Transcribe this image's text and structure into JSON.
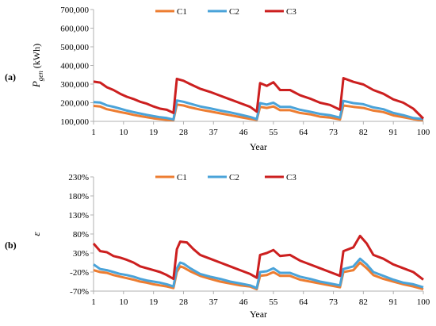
{
  "chart_data": [
    {
      "type": "line",
      "panel_label": "(a)",
      "ylabel": "P",
      "ylabel_subscript": "gen",
      "ylabel_unit": " (kWh)",
      "xlabel": "Year",
      "xlim": [
        1,
        100
      ],
      "ylim": [
        100000,
        700000
      ],
      "y_ticks": [
        "100,000",
        "200,000",
        "300,000",
        "400,000",
        "500,000",
        "600,000",
        "700,000"
      ],
      "x_ticks": [
        "1",
        "10",
        "19",
        "28",
        "37",
        "46",
        "55",
        "64",
        "73",
        "82",
        "91",
        "100"
      ],
      "legend_position": "top-center",
      "series": [
        {
          "name": "C1",
          "color": "#ED7D31",
          "points": [
            [
              1,
              183000
            ],
            [
              3,
              180000
            ],
            [
              5,
              165000
            ],
            [
              7,
              158000
            ],
            [
              9,
              150000
            ],
            [
              11,
              143000
            ],
            [
              13,
              135000
            ],
            [
              15,
              128000
            ],
            [
              17,
              122000
            ],
            [
              19,
              116000
            ],
            [
              21,
              112000
            ],
            [
              23,
              108000
            ],
            [
              25,
              106000
            ],
            [
              26,
              190000
            ],
            [
              28,
              185000
            ],
            [
              30,
              175000
            ],
            [
              33,
              163000
            ],
            [
              36,
              153000
            ],
            [
              39,
              143000
            ],
            [
              42,
              133000
            ],
            [
              45,
              123000
            ],
            [
              48,
              113000
            ],
            [
              50,
              108000
            ],
            [
              51,
              178000
            ],
            [
              53,
              172000
            ],
            [
              55,
              180000
            ],
            [
              57,
              160000
            ],
            [
              60,
              160000
            ],
            [
              63,
              145000
            ],
            [
              66,
              138000
            ],
            [
              69,
              125000
            ],
            [
              72,
              120000
            ],
            [
              75,
              110000
            ],
            [
              76,
              185000
            ],
            [
              79,
              178000
            ],
            [
              82,
              172000
            ],
            [
              85,
              158000
            ],
            [
              88,
              150000
            ],
            [
              91,
              132000
            ],
            [
              94,
              122000
            ],
            [
              97,
              112000
            ],
            [
              100,
              105000
            ]
          ]
        },
        {
          "name": "C2",
          "color": "#4AA3D9",
          "points": [
            [
              1,
              203000
            ],
            [
              3,
              201000
            ],
            [
              5,
              186000
            ],
            [
              7,
              178000
            ],
            [
              9,
              168000
            ],
            [
              11,
              158000
            ],
            [
              13,
              150000
            ],
            [
              15,
              142000
            ],
            [
              17,
              135000
            ],
            [
              19,
              128000
            ],
            [
              21,
              122000
            ],
            [
              23,
              118000
            ],
            [
              25,
              110000
            ],
            [
              26,
              212000
            ],
            [
              28,
              205000
            ],
            [
              30,
              195000
            ],
            [
              33,
              180000
            ],
            [
              36,
              170000
            ],
            [
              39,
              158000
            ],
            [
              42,
              148000
            ],
            [
              45,
              136000
            ],
            [
              48,
              124000
            ],
            [
              50,
              112000
            ],
            [
              51,
              198000
            ],
            [
              53,
              190000
            ],
            [
              55,
              200000
            ],
            [
              57,
              178000
            ],
            [
              60,
              178000
            ],
            [
              63,
              162000
            ],
            [
              66,
              152000
            ],
            [
              69,
              140000
            ],
            [
              72,
              133000
            ],
            [
              75,
              120000
            ],
            [
              76,
              210000
            ],
            [
              79,
              198000
            ],
            [
              82,
              192000
            ],
            [
              85,
              175000
            ],
            [
              88,
              165000
            ],
            [
              91,
              145000
            ],
            [
              94,
              133000
            ],
            [
              97,
              118000
            ],
            [
              100,
              112000
            ]
          ]
        },
        {
          "name": "C3",
          "color": "#CC1F1F",
          "points": [
            [
              1,
              313000
            ],
            [
              3,
              308000
            ],
            [
              5,
              283000
            ],
            [
              7,
              268000
            ],
            [
              9,
              248000
            ],
            [
              11,
              232000
            ],
            [
              13,
              220000
            ],
            [
              15,
              205000
            ],
            [
              17,
              195000
            ],
            [
              19,
              180000
            ],
            [
              21,
              168000
            ],
            [
              23,
              162000
            ],
            [
              25,
              145000
            ],
            [
              26,
              328000
            ],
            [
              28,
              318000
            ],
            [
              30,
              300000
            ],
            [
              33,
              275000
            ],
            [
              36,
              258000
            ],
            [
              39,
              238000
            ],
            [
              42,
              218000
            ],
            [
              45,
              198000
            ],
            [
              48,
              178000
            ],
            [
              50,
              152000
            ],
            [
              51,
              305000
            ],
            [
              53,
              290000
            ],
            [
              55,
              310000
            ],
            [
              57,
              268000
            ],
            [
              60,
              268000
            ],
            [
              63,
              240000
            ],
            [
              66,
              222000
            ],
            [
              69,
              200000
            ],
            [
              72,
              188000
            ],
            [
              75,
              162000
            ],
            [
              76,
              332000
            ],
            [
              79,
              312000
            ],
            [
              82,
              298000
            ],
            [
              85,
              268000
            ],
            [
              88,
              248000
            ],
            [
              91,
              218000
            ],
            [
              94,
              200000
            ],
            [
              97,
              168000
            ],
            [
              100,
              115000
            ]
          ]
        }
      ]
    },
    {
      "type": "line",
      "panel_label": "(b)",
      "ylabel": "ε",
      "xlabel": "Year",
      "xlim": [
        1,
        100
      ],
      "ylim": [
        -70,
        230
      ],
      "y_ticks": [
        "-70%",
        "-20%",
        "30%",
        "80%",
        "130%",
        "180%",
        "230%"
      ],
      "x_ticks": [
        "1",
        "10",
        "19",
        "28",
        "37",
        "46",
        "55",
        "64",
        "73",
        "82",
        "91",
        "100"
      ],
      "legend_position": "top-center",
      "series": [
        {
          "name": "C1",
          "color": "#ED7D31",
          "points": [
            [
              1,
              -15
            ],
            [
              3,
              -20
            ],
            [
              5,
              -22
            ],
            [
              7,
              -28
            ],
            [
              9,
              -32
            ],
            [
              11,
              -36
            ],
            [
              13,
              -40
            ],
            [
              15,
              -45
            ],
            [
              17,
              -48
            ],
            [
              19,
              -52
            ],
            [
              21,
              -55
            ],
            [
              23,
              -58
            ],
            [
              25,
              -62
            ],
            [
              26,
              -20
            ],
            [
              27,
              -5
            ],
            [
              28,
              -8
            ],
            [
              30,
              -18
            ],
            [
              33,
              -30
            ],
            [
              36,
              -38
            ],
            [
              39,
              -45
            ],
            [
              42,
              -50
            ],
            [
              45,
              -55
            ],
            [
              48,
              -58
            ],
            [
              50,
              -65
            ],
            [
              51,
              -30
            ],
            [
              53,
              -28
            ],
            [
              55,
              -20
            ],
            [
              57,
              -30
            ],
            [
              60,
              -30
            ],
            [
              63,
              -40
            ],
            [
              66,
              -45
            ],
            [
              69,
              -50
            ],
            [
              72,
              -55
            ],
            [
              75,
              -60
            ],
            [
              76,
              -20
            ],
            [
              79,
              -15
            ],
            [
              81,
              5
            ],
            [
              83,
              -10
            ],
            [
              85,
              -28
            ],
            [
              88,
              -38
            ],
            [
              91,
              -45
            ],
            [
              94,
              -52
            ],
            [
              97,
              -58
            ],
            [
              100,
              -65
            ]
          ]
        },
        {
          "name": "C2",
          "color": "#4AA3D9",
          "points": [
            [
              1,
              0
            ],
            [
              3,
              -12
            ],
            [
              5,
              -15
            ],
            [
              7,
              -20
            ],
            [
              9,
              -25
            ],
            [
              11,
              -28
            ],
            [
              13,
              -32
            ],
            [
              15,
              -38
            ],
            [
              17,
              -42
            ],
            [
              19,
              -45
            ],
            [
              21,
              -48
            ],
            [
              23,
              -52
            ],
            [
              25,
              -58
            ],
            [
              26,
              -10
            ],
            [
              27,
              5
            ],
            [
              28,
              2
            ],
            [
              30,
              -10
            ],
            [
              33,
              -25
            ],
            [
              36,
              -32
            ],
            [
              39,
              -38
            ],
            [
              42,
              -45
            ],
            [
              45,
              -50
            ],
            [
              48,
              -55
            ],
            [
              50,
              -62
            ],
            [
              51,
              -20
            ],
            [
              53,
              -18
            ],
            [
              55,
              -10
            ],
            [
              57,
              -22
            ],
            [
              60,
              -22
            ],
            [
              63,
              -32
            ],
            [
              66,
              -38
            ],
            [
              69,
              -45
            ],
            [
              72,
              -50
            ],
            [
              75,
              -55
            ],
            [
              76,
              -12
            ],
            [
              79,
              -5
            ],
            [
              81,
              15
            ],
            [
              83,
              0
            ],
            [
              85,
              -20
            ],
            [
              88,
              -30
            ],
            [
              91,
              -40
            ],
            [
              94,
              -48
            ],
            [
              97,
              -52
            ],
            [
              100,
              -60
            ]
          ]
        },
        {
          "name": "C3",
          "color": "#CC1F1F",
          "points": [
            [
              1,
              55
            ],
            [
              3,
              35
            ],
            [
              5,
              32
            ],
            [
              7,
              22
            ],
            [
              9,
              18
            ],
            [
              11,
              12
            ],
            [
              13,
              5
            ],
            [
              15,
              -5
            ],
            [
              17,
              -10
            ],
            [
              19,
              -15
            ],
            [
              21,
              -20
            ],
            [
              23,
              -28
            ],
            [
              25,
              -38
            ],
            [
              26,
              40
            ],
            [
              27,
              60
            ],
            [
              29,
              58
            ],
            [
              31,
              40
            ],
            [
              33,
              25
            ],
            [
              36,
              15
            ],
            [
              39,
              5
            ],
            [
              42,
              -5
            ],
            [
              45,
              -15
            ],
            [
              48,
              -25
            ],
            [
              50,
              -35
            ],
            [
              51,
              25
            ],
            [
              53,
              30
            ],
            [
              55,
              38
            ],
            [
              57,
              22
            ],
            [
              60,
              25
            ],
            [
              63,
              10
            ],
            [
              66,
              0
            ],
            [
              69,
              -10
            ],
            [
              72,
              -20
            ],
            [
              75,
              -30
            ],
            [
              76,
              35
            ],
            [
              79,
              45
            ],
            [
              81,
              75
            ],
            [
              83,
              55
            ],
            [
              85,
              25
            ],
            [
              88,
              15
            ],
            [
              91,
              0
            ],
            [
              94,
              -10
            ],
            [
              97,
              -20
            ],
            [
              100,
              -40
            ]
          ]
        }
      ]
    }
  ]
}
